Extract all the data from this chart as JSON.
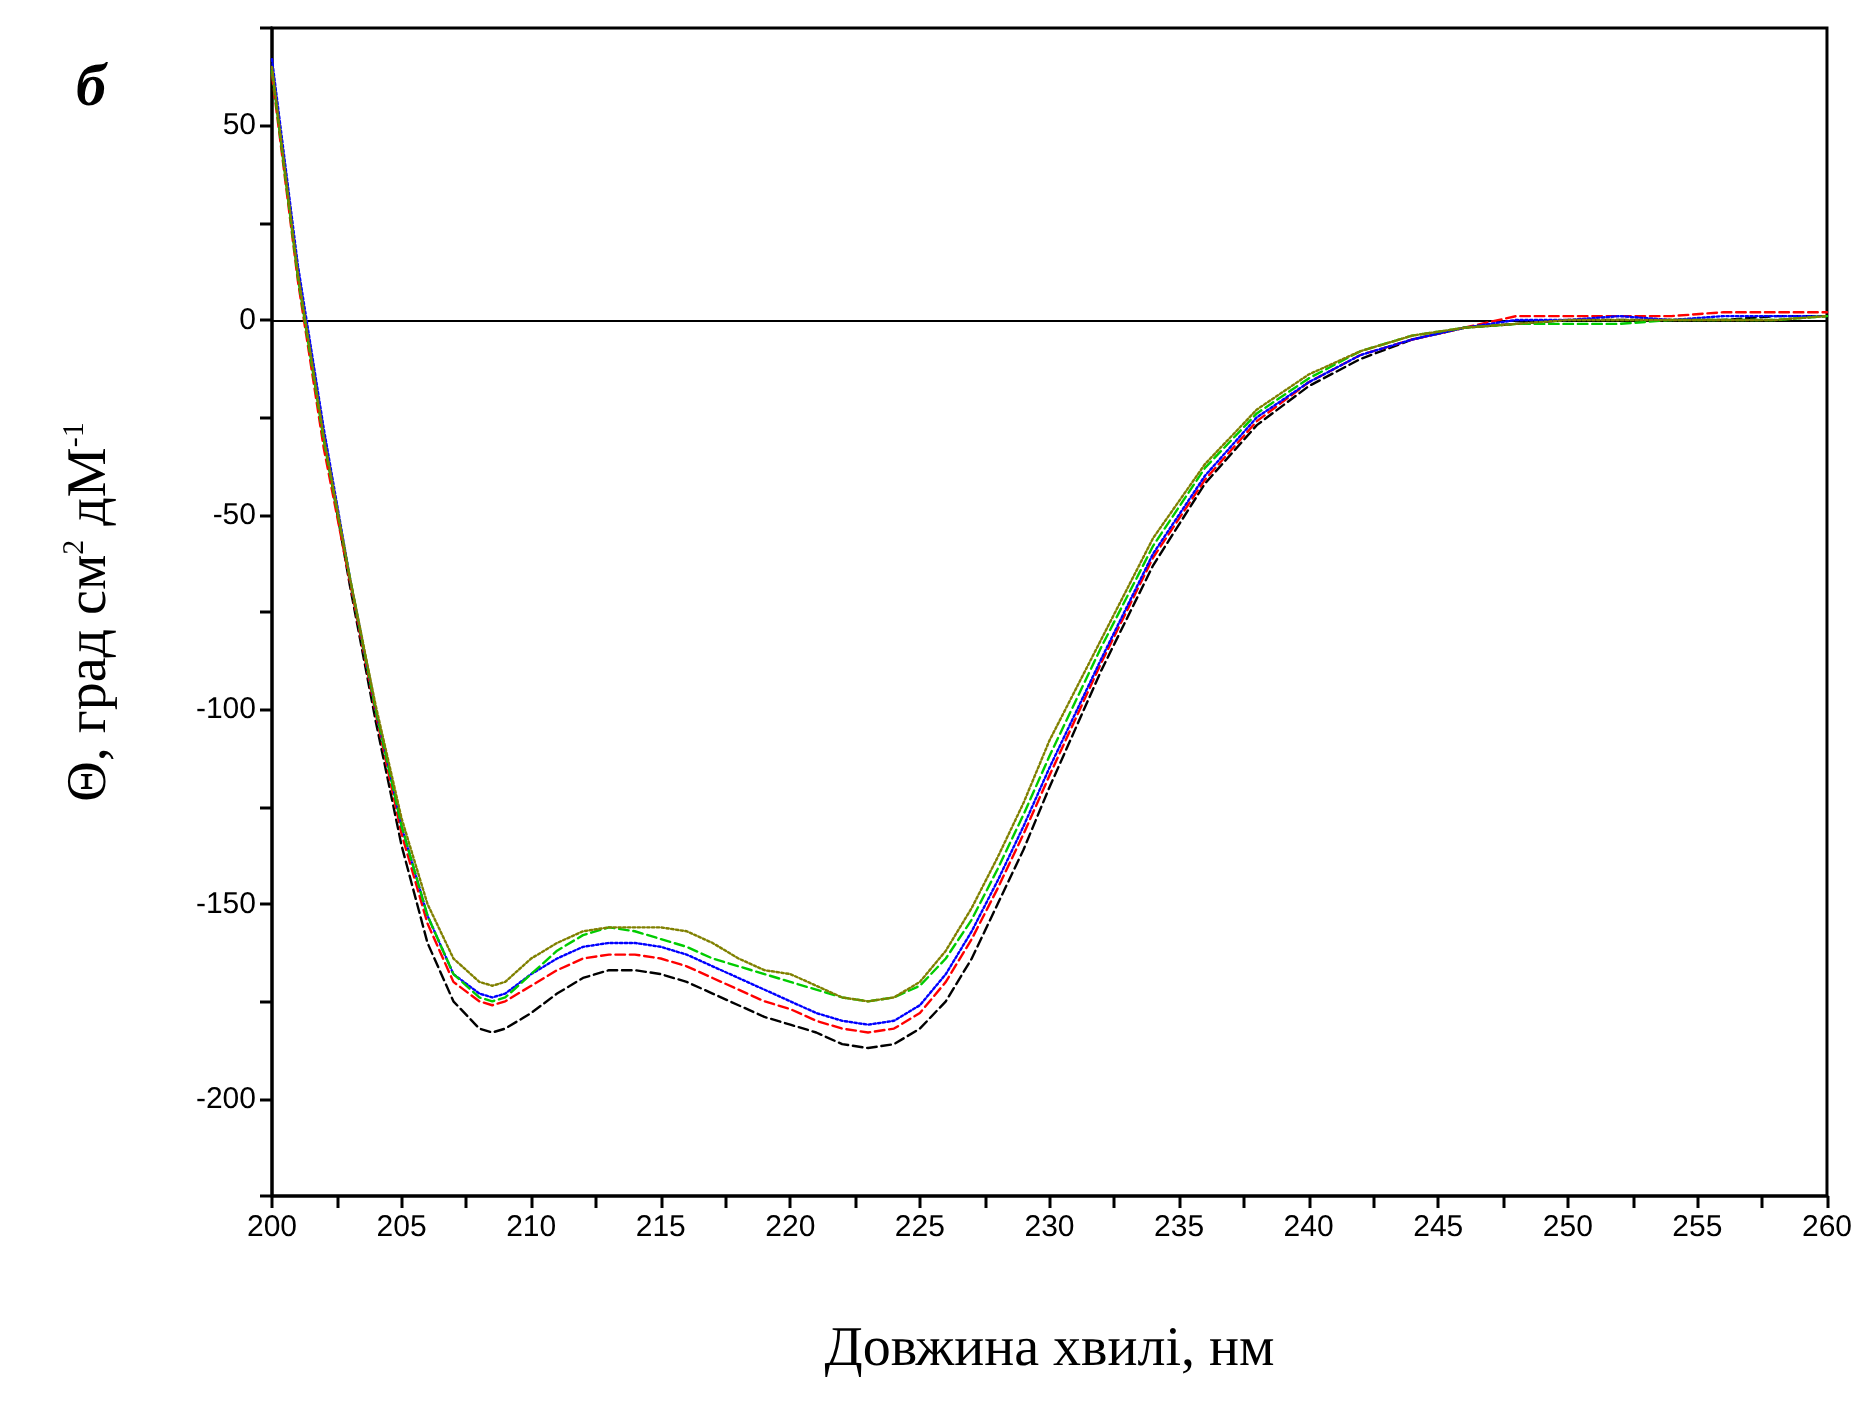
{
  "chart_data": {
    "type": "line",
    "xlabel": "Довжина хвилі, нм",
    "ylabel": "Θ, град см$^{2}$ дМ$^{-1}$",
    "annotations": [
      "б"
    ],
    "x": [
      200,
      201,
      202,
      203,
      204,
      205,
      206,
      207,
      208,
      208.5,
      209,
      210,
      211,
      212,
      213,
      214,
      215,
      216,
      217,
      218,
      219,
      220,
      221,
      222,
      223,
      224,
      225,
      226,
      227,
      228,
      229,
      230,
      232,
      234,
      236,
      238,
      240,
      242,
      244,
      246,
      248,
      250,
      252,
      254,
      256,
      258,
      260
    ],
    "series": [
      {
        "color": "#000000",
        "line_style": "dashed",
        "values": [
          65,
          12,
          -30,
          -68,
          -103,
          -135,
          -160,
          -175,
          -182,
          -183,
          -182,
          -178,
          -173,
          -169,
          -167,
          -167,
          -168,
          -170,
          -173,
          -176,
          -179,
          -181,
          -183,
          -186,
          -187,
          -186,
          -182,
          -175,
          -164,
          -150,
          -136,
          -120,
          -90,
          -63,
          -42,
          -27,
          -17,
          -10,
          -5,
          -2,
          -1,
          0,
          0,
          0,
          0,
          1,
          1
        ]
      },
      {
        "color": "#ff0000",
        "line_style": "dashed",
        "values": [
          63,
          10,
          -33,
          -67,
          -101,
          -132,
          -155,
          -170,
          -175,
          -176,
          -175,
          -171,
          -167,
          -164,
          -163,
          -163,
          -164,
          -166,
          -169,
          -172,
          -175,
          -177,
          -180,
          -182,
          -183,
          -182,
          -178,
          -170,
          -159,
          -146,
          -132,
          -117,
          -88,
          -61,
          -41,
          -26,
          -16,
          -9,
          -5,
          -2,
          1,
          1,
          1,
          1,
          2,
          2,
          2
        ]
      },
      {
        "color": "#0000ff",
        "line_style": "dotted",
        "values": [
          67,
          14,
          -28,
          -66,
          -100,
          -130,
          -153,
          -168,
          -173,
          -174,
          -173,
          -168,
          -164,
          -161,
          -160,
          -160,
          -161,
          -163,
          -166,
          -169,
          -172,
          -175,
          -178,
          -180,
          -181,
          -180,
          -176,
          -168,
          -157,
          -144,
          -130,
          -115,
          -87,
          -60,
          -40,
          -25,
          -16,
          -9,
          -5,
          -2,
          0,
          0,
          1,
          0,
          1,
          1,
          1
        ]
      },
      {
        "color": "#00cc00",
        "line_style": "dashed",
        "values": [
          64,
          11,
          -31,
          -66,
          -100,
          -130,
          -153,
          -168,
          -174,
          -175,
          -174,
          -168,
          -162,
          -158,
          -156,
          -157,
          -159,
          -161,
          -164,
          -166,
          -168,
          -170,
          -172,
          -174,
          -175,
          -174,
          -171,
          -164,
          -154,
          -141,
          -127,
          -112,
          -84,
          -58,
          -38,
          -24,
          -15,
          -8,
          -4,
          -2,
          -1,
          -1,
          -1,
          0,
          0,
          0,
          1
        ]
      },
      {
        "color": "#808000",
        "line_style": "dotted",
        "values": [
          65,
          12,
          -30,
          -66,
          -99,
          -128,
          -150,
          -164,
          -170,
          -171,
          -170,
          -164,
          -160,
          -157,
          -156,
          -156,
          -156,
          -157,
          -160,
          -164,
          -167,
          -168,
          -171,
          -174,
          -175,
          -174,
          -170,
          -162,
          -151,
          -138,
          -124,
          -108,
          -82,
          -56,
          -37,
          -23,
          -14,
          -8,
          -4,
          -2,
          -1,
          0,
          0,
          0,
          0,
          0,
          1
        ]
      }
    ],
    "xlim": [
      200,
      260
    ],
    "xticks": [
      200,
      {
        "value": 202.5,
        "label": null
      },
      205,
      {
        "value": 207.5,
        "label": null
      },
      210,
      {
        "value": 212.5,
        "label": null
      },
      215,
      {
        "value": 217.5,
        "label": null
      },
      220,
      {
        "value": 222.5,
        "label": null
      },
      225,
      {
        "value": 227.5,
        "label": null
      },
      230,
      {
        "value": 232.5,
        "label": null
      },
      235,
      {
        "value": 237.5,
        "label": null
      },
      240,
      {
        "value": 242.5,
        "label": null
      },
      245,
      {
        "value": 247.5,
        "label": null
      },
      250,
      {
        "value": 252.5,
        "label": null
      },
      255,
      {
        "value": 257.5,
        "label": null
      },
      260
    ],
    "ylim": [
      -225,
      75
    ],
    "yticks": [
      {
        "value": -225,
        "label": null
      },
      -200,
      {
        "value": -175,
        "label": null
      },
      -150,
      {
        "value": -125,
        "label": null
      },
      -100,
      {
        "value": -75,
        "label": null
      },
      -50,
      {
        "value": -25,
        "label": null
      },
      0,
      {
        "value": 25,
        "label": null
      },
      50,
      {
        "value": 75,
        "label": null
      }
    ],
    "ref_lines": [
      {
        "axis": "y",
        "value": 0,
        "color": "#000000",
        "line_style": "solid"
      }
    ],
    "grid": false,
    "marker": "none"
  }
}
